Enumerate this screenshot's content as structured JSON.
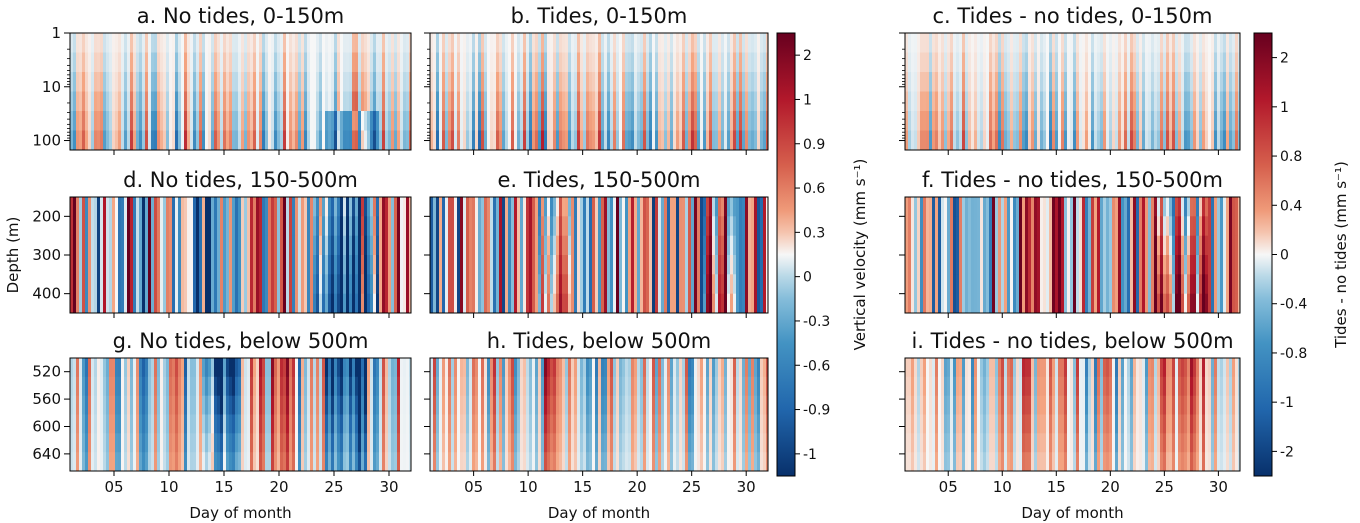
{
  "chart_data": {
    "type": "heatmap",
    "x_label": "Day of month",
    "x_ticks": [
      "05",
      "10",
      "15",
      "20",
      "25",
      "30"
    ],
    "x_tick_values": [
      5,
      10,
      15,
      20,
      25,
      30
    ],
    "x_range": [
      1,
      32
    ],
    "y_label": "Depth (m)",
    "rows": [
      {
        "y_scale": "log",
        "y_range": [
          1,
          150
        ],
        "y_ticks": [
          "1",
          "10",
          "100"
        ],
        "y_tick_values": [
          1,
          10,
          100
        ]
      },
      {
        "y_scale": "linear",
        "y_range": [
          150,
          450
        ],
        "y_ticks": [
          "200",
          "300",
          "400"
        ],
        "y_tick_values": [
          200,
          300,
          400
        ]
      },
      {
        "y_scale": "linear",
        "y_range": [
          500,
          665
        ],
        "y_ticks": [
          "520",
          "560",
          "600",
          "640"
        ],
        "y_tick_values": [
          520,
          560,
          600,
          640
        ]
      }
    ],
    "panels": [
      {
        "title": "a. No tides, 0-150m",
        "row": 0,
        "col": 0,
        "colorbar": 0,
        "pattern": "notides_upper",
        "amp": 0.5,
        "title_color": "#111111"
      },
      {
        "title": "b. Tides, 0-150m",
        "row": 0,
        "col": 1,
        "colorbar": 0,
        "pattern": "tides_upper",
        "amp": 0.5,
        "title_color": "#111111"
      },
      {
        "title": "c. Tides - no tides, 0-150m",
        "row": 0,
        "col": 2,
        "colorbar": 1,
        "pattern": "diff_upper",
        "amp": 0.4,
        "title_color": "#111111"
      },
      {
        "title": "d. No tides, 150-500m",
        "row": 1,
        "col": 0,
        "colorbar": 0,
        "pattern": "notides_mid",
        "amp": 0.85,
        "title_color": "#111111"
      },
      {
        "title": "e. Tides, 150-500m",
        "row": 1,
        "col": 1,
        "colorbar": 0,
        "pattern": "tides_mid",
        "amp": 0.85,
        "title_color": "#111111"
      },
      {
        "title": "f. Tides - no tides, 150-500m",
        "row": 1,
        "col": 2,
        "colorbar": 1,
        "pattern": "diff_mid",
        "amp": 0.85,
        "title_color": "#111111"
      },
      {
        "title": "g. No tides, below 500m",
        "row": 2,
        "col": 0,
        "colorbar": 0,
        "pattern": "notides_deep",
        "amp": 0.85,
        "title_color": "#111111"
      },
      {
        "title": "h. Tides, below 500m",
        "row": 2,
        "col": 1,
        "colorbar": 0,
        "pattern": "tides_deep",
        "amp": 0.6,
        "title_color": "#5a2c10"
      },
      {
        "title": "i. Tides - no tides, below 500m",
        "row": 2,
        "col": 2,
        "colorbar": 1,
        "pattern": "diff_deep",
        "amp": 0.6,
        "title_color": "#111111"
      }
    ],
    "colorbars": [
      {
        "label": "Vertical velocity (mm s⁻¹)",
        "ticks": [
          "2",
          "1",
          "0.9",
          "0.6",
          "0.3",
          "0",
          "-0.3",
          "-0.6",
          "-0.9",
          "-1"
        ],
        "colormap": "RdBu_r"
      },
      {
        "label": "Tides - no tides (mm s⁻¹)",
        "ticks": [
          "2",
          "1",
          "0.8",
          "0.4",
          "0",
          "-0.4",
          "-0.8",
          "-1",
          "-2"
        ],
        "colormap": "RdBu_r"
      }
    ],
    "colors": {
      "negative_max": "#0b3a78",
      "mid_neg": "#4a90c2",
      "zero": "#f7f7f7",
      "mid_pos": "#e06a52",
      "positive_max": "#6a0a1e"
    }
  }
}
